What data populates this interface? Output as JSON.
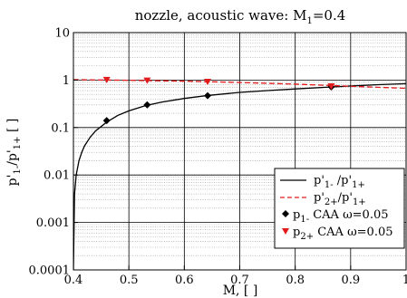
{
  "chart_data": {
    "type": "line",
    "title": {
      "text": "nozzle, acoustic wave: M",
      "sub": "1",
      "suffix": "=0.4"
    },
    "xlabel": "M, [ ]",
    "ylabel": {
      "p": "p",
      "prime1": "'",
      "sub1": "1-",
      "slash": "/p",
      "prime2": "'",
      "sub2": "1+",
      "unit": " [ ]"
    },
    "xlim": [
      0.4,
      1.0
    ],
    "ylim": [
      0.0001,
      10
    ],
    "yscale": "log",
    "grid": true,
    "x_ticks": [
      0.4,
      0.5,
      0.6,
      0.7,
      0.8,
      0.9,
      1.0
    ],
    "x_tick_labels": [
      "0.4",
      "0.5",
      "0.6",
      "0.7",
      "0.8",
      "0.9",
      "1"
    ],
    "y_ticks": [
      0.0001,
      0.001,
      0.01,
      0.1,
      1,
      10
    ],
    "y_tick_labels": [
      "0.0001",
      "0.001",
      "0.01",
      "0.1",
      "1",
      "10"
    ],
    "legend_position": "bottom-right",
    "series": [
      {
        "kind": "line",
        "color": "#000000",
        "dash": "solid",
        "legend": {
          "a": "p",
          "b": "'",
          "c": "1-",
          "d": " /p",
          "e": "'",
          "f": "1+"
        },
        "x": [
          0.4,
          0.402,
          0.405,
          0.41,
          0.415,
          0.42,
          0.43,
          0.44,
          0.46,
          0.48,
          0.5,
          0.53,
          0.56,
          0.6,
          0.64,
          0.7,
          0.75,
          0.8,
          0.87,
          0.9,
          0.95,
          1.0
        ],
        "y": [
          0.0001,
          0.004,
          0.01,
          0.02,
          0.03,
          0.041,
          0.062,
          0.085,
          0.13,
          0.18,
          0.225,
          0.29,
          0.345,
          0.41,
          0.47,
          0.55,
          0.6,
          0.65,
          0.72,
          0.75,
          0.8,
          0.84
        ]
      },
      {
        "kind": "line",
        "color": "#e31a1c",
        "dash": "dashed",
        "legend": {
          "a": "p",
          "b": "'",
          "c": "2+",
          "d": "/p",
          "e": "'",
          "f": "1+"
        },
        "x": [
          0.4,
          0.5,
          0.6,
          0.7,
          0.8,
          0.9,
          1.0
        ],
        "y": [
          1.02,
          0.99,
          0.95,
          0.89,
          0.82,
          0.74,
          0.67
        ]
      },
      {
        "kind": "marker",
        "marker": "diamond",
        "color": "#000000",
        "legend": {
          "a": "p",
          "c": "1-",
          "g": " CAA ω=0.05"
        },
        "x": [
          0.46,
          0.533,
          0.642,
          0.865
        ],
        "y": [
          0.14,
          0.3,
          0.47,
          0.72
        ]
      },
      {
        "kind": "marker",
        "marker": "triangle-down",
        "color": "#e31a1c",
        "legend": {
          "a": "p",
          "c": "2+",
          "g": " CAA ω=0.05"
        },
        "x": [
          0.46,
          0.533,
          0.642,
          0.865
        ],
        "y": [
          1.0,
          0.97,
          0.91,
          0.73
        ]
      }
    ]
  }
}
